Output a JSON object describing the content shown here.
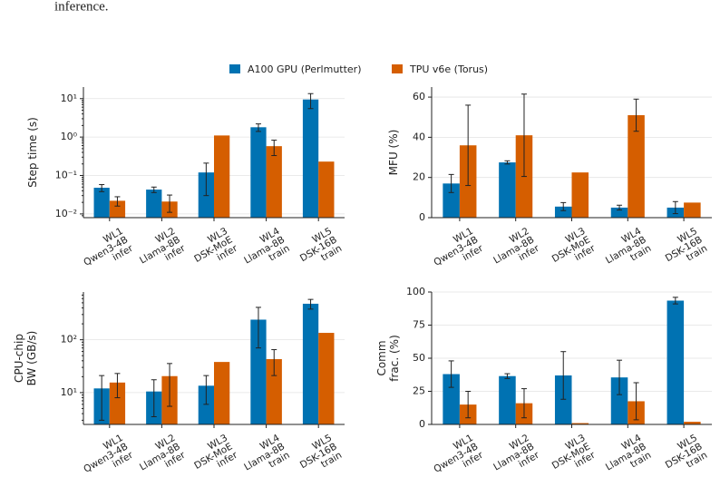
{
  "caption_fragment": "inference.",
  "chart_data": [
    {
      "type": "bar",
      "ylabel": "Step time (s)",
      "log": true,
      "grid": true,
      "categories": [
        [
          "WL1",
          "Qwen3-4B",
          "infer"
        ],
        [
          "WL2",
          "Llama-8B",
          "infer"
        ],
        [
          "WL3",
          "DSK-MoE",
          "infer"
        ],
        [
          "WL4",
          "Llama-8B",
          "train"
        ],
        [
          "WL5",
          "DSK-16B",
          "train"
        ]
      ],
      "series": [
        {
          "name": "A100 GPU (Perlmutter)",
          "color": "#0072b2",
          "values": [
            0.048,
            0.043,
            0.12,
            1.8,
            9.5
          ],
          "errors": [
            0.01,
            0.007,
            0.09,
            0.4,
            4
          ]
        },
        {
          "name": "TPU v6e (Torus)",
          "color": "#d55e00",
          "values": [
            0.022,
            0.021,
            1.1,
            0.58,
            0.23
          ],
          "errors": [
            0.006,
            0.01,
            null,
            0.25,
            null
          ]
        }
      ],
      "ylim": [
        0.008,
        20
      ],
      "yticks": [
        {
          "value": 0.01,
          "label": "10⁻²"
        },
        {
          "value": 0.1,
          "label": "10⁻¹"
        },
        {
          "value": 1,
          "label": "10⁰"
        },
        {
          "value": 10,
          "label": "10¹"
        }
      ]
    },
    {
      "type": "bar",
      "ylabel": "MFU (%)",
      "log": false,
      "grid": true,
      "categories": [
        [
          "WL1",
          "Qwen3-4B",
          "infer"
        ],
        [
          "WL2",
          "Llama-8B",
          "infer"
        ],
        [
          "WL3",
          "DSK-MoE",
          "infer"
        ],
        [
          "WL4",
          "Llama-8B",
          "train"
        ],
        [
          "WL5",
          "DSK-16B",
          "train"
        ]
      ],
      "series": [
        {
          "color": "#0072b2",
          "values": [
            17,
            27.5,
            5.5,
            5,
            5
          ],
          "errors": [
            4.5,
            0.8,
            2,
            1.2,
            3
          ]
        },
        {
          "color": "#d55e00",
          "values": [
            36,
            41,
            22.5,
            51,
            7.5
          ],
          "errors": [
            20,
            20.5,
            null,
            8,
            null
          ]
        }
      ],
      "ylim": [
        0,
        65
      ],
      "yticks": [
        0,
        20,
        40,
        60
      ]
    },
    {
      "type": "bar",
      "ylabel": [
        "CPU-chip",
        "BW (GB/s)"
      ],
      "log": true,
      "grid": true,
      "categories": [
        [
          "WL1",
          "Qwen3-4B",
          "infer"
        ],
        [
          "WL2",
          "Llama-8B",
          "infer"
        ],
        [
          "WL3",
          "DSK-MoE",
          "infer"
        ],
        [
          "WL4",
          "Llama-8B",
          "train"
        ],
        [
          "WL5",
          "DSK-16B",
          "train"
        ]
      ],
      "series": [
        {
          "color": "#0072b2",
          "values": [
            12,
            10.5,
            13.5,
            240,
            480
          ],
          "errors": [
            9,
            7,
            7.5,
            170,
            100
          ]
        },
        {
          "color": "#d55e00",
          "values": [
            15.5,
            20.5,
            38,
            43,
            135
          ],
          "errors": [
            7.5,
            15,
            null,
            22,
            null
          ]
        }
      ],
      "ylim": [
        2.5,
        800
      ],
      "yticks": [
        {
          "value": 10,
          "label": "10¹"
        },
        {
          "value": 100,
          "label": "10²"
        }
      ]
    },
    {
      "type": "bar",
      "ylabel": [
        "Comm",
        "frac. (%)"
      ],
      "log": false,
      "grid": true,
      "categories": [
        [
          "WL1",
          "Qwen3-4B",
          "infer"
        ],
        [
          "WL2",
          "Llama-8B",
          "infer"
        ],
        [
          "WL3",
          "DSK-MoE",
          "infer"
        ],
        [
          "WL4",
          "Llama-8B",
          "train"
        ],
        [
          "WL5",
          "DSK-16B",
          "train"
        ]
      ],
      "series": [
        {
          "color": "#0072b2",
          "values": [
            38,
            36.5,
            37,
            35.5,
            93.5
          ],
          "errors": [
            10,
            1.8,
            18,
            13,
            2.5
          ]
        },
        {
          "color": "#d55e00",
          "values": [
            15,
            16,
            1,
            17.5,
            2
          ],
          "errors": [
            10,
            11,
            null,
            14,
            null
          ]
        }
      ],
      "ylim": [
        0,
        100
      ],
      "yticks": [
        0,
        25,
        50,
        75,
        100
      ]
    }
  ]
}
